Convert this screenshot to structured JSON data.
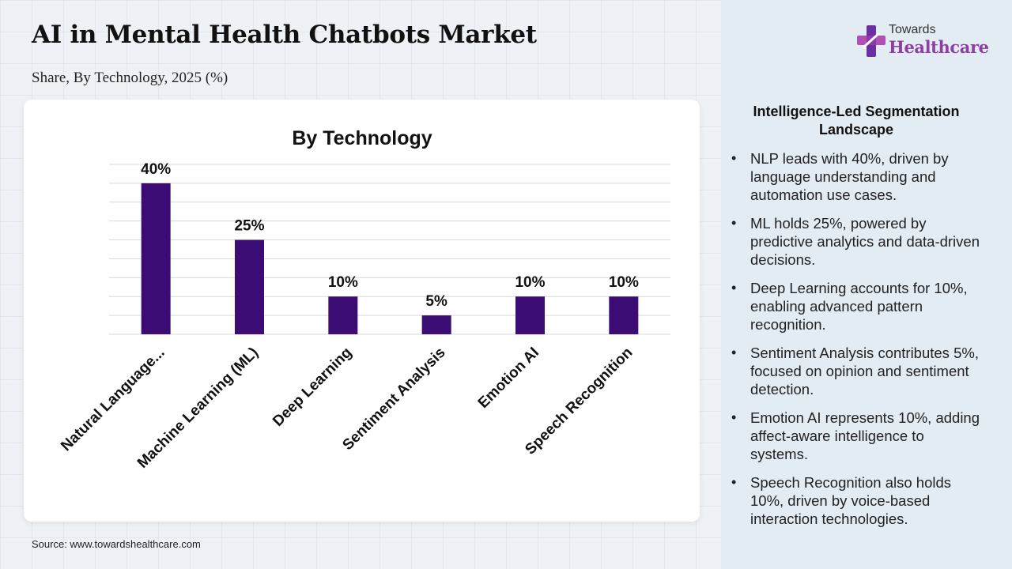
{
  "header": {
    "title": "AI in Mental Health Chatbots Market",
    "subtitle": "Share, By Technology, 2025 (%)"
  },
  "logo": {
    "line1": "Towards",
    "line2": "Healthcare"
  },
  "colors": {
    "bar": "#3b0d74",
    "grid": "#d9d9d9",
    "brand": "#8e3fa6"
  },
  "chart_data": {
    "type": "bar",
    "title": "By Technology",
    "categories": [
      "Natural Language...",
      "Machine Learning (ML)",
      "Deep Learning",
      "Sentiment Analysis",
      "Emotion AI",
      "Speech Recognition"
    ],
    "values": [
      40,
      25,
      10,
      5,
      10,
      10
    ],
    "data_labels": [
      "40%",
      "25%",
      "10%",
      "5%",
      "10%",
      "10%"
    ],
    "ylim": [
      0,
      45
    ],
    "grid": true,
    "xlabel": "",
    "ylabel": ""
  },
  "sidebar": {
    "heading": "Intelligence-Led Segmentation Landscape",
    "bullets": [
      "NLP leads with 40%, driven by language understanding and automation use cases.",
      "ML holds 25%, powered by predictive analytics and data-driven decisions.",
      "Deep Learning accounts for 10%, enabling advanced pattern recognition.",
      "Sentiment Analysis contributes 5%, focused on opinion and sentiment detection.",
      "Emotion AI represents 10%, adding affect-aware intelligence to systems.",
      "Speech Recognition also holds 10%, driven by voice-based interaction technologies."
    ]
  },
  "footer": {
    "source": "Source: www.towardshealthcare.com"
  }
}
